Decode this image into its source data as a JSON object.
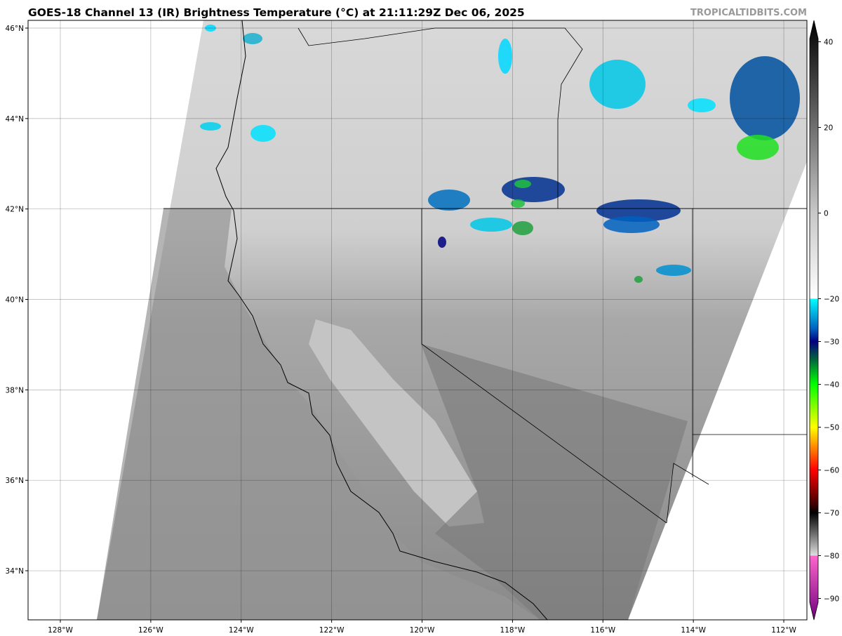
{
  "title": "GOES-18 Channel 13 (IR) Brightness Temperature (°C) at 21:11:29Z Dec 06, 2025",
  "brand": "TROPICALTIDBITS.COM",
  "map": {
    "projection": "plate carree",
    "lon_range": [
      -128.7,
      -111.5
    ],
    "lat_range": [
      32.9,
      46.2
    ],
    "grid": true,
    "lon_ticks": [
      {
        "v": -128,
        "label": "128°W"
      },
      {
        "v": -126,
        "label": "126°W"
      },
      {
        "v": -124,
        "label": "124°W"
      },
      {
        "v": -122,
        "label": "122°W"
      },
      {
        "v": -120,
        "label": "120°W"
      },
      {
        "v": -118,
        "label": "118°W"
      },
      {
        "v": -116,
        "label": "116°W"
      },
      {
        "v": -114,
        "label": "114°W"
      },
      {
        "v": -112,
        "label": "112°W"
      }
    ],
    "lat_ticks": [
      {
        "v": 46,
        "label": "46°N"
      },
      {
        "v": 44,
        "label": "44°N"
      },
      {
        "v": 42,
        "label": "42°N"
      },
      {
        "v": 40,
        "label": "40°N"
      },
      {
        "v": 38,
        "label": "38°N"
      },
      {
        "v": 36,
        "label": "36°N"
      },
      {
        "v": 34,
        "label": "34°N"
      }
    ]
  },
  "colorbar": {
    "range": [
      -95,
      45
    ],
    "extend": "both",
    "ticks": [
      {
        "v": 40,
        "label": "40"
      },
      {
        "v": 20,
        "label": "20"
      },
      {
        "v": 0,
        "label": "0"
      },
      {
        "v": -20,
        "label": "−20"
      },
      {
        "v": -30,
        "label": "−30"
      },
      {
        "v": -40,
        "label": "−40"
      },
      {
        "v": -50,
        "label": "−50"
      },
      {
        "v": -60,
        "label": "−60"
      },
      {
        "v": -70,
        "label": "−70"
      },
      {
        "v": -80,
        "label": "−80"
      },
      {
        "v": -90,
        "label": "−90"
      }
    ],
    "stops": [
      {
        "v": 45,
        "c": "#000000"
      },
      {
        "v": 0,
        "c": "#c8c8c8"
      },
      {
        "v": -20,
        "c": "#ffffff"
      },
      {
        "v": -20,
        "c": "#00ffff"
      },
      {
        "v": -27,
        "c": "#0060c0"
      },
      {
        "v": -30,
        "c": "#000080"
      },
      {
        "v": -34,
        "c": "#006040"
      },
      {
        "v": -40,
        "c": "#00ff00"
      },
      {
        "v": -50,
        "c": "#ffff00"
      },
      {
        "v": -55,
        "c": "#ff8000"
      },
      {
        "v": -60,
        "c": "#ff0000"
      },
      {
        "v": -68,
        "c": "#400000"
      },
      {
        "v": -70,
        "c": "#000000"
      },
      {
        "v": -80,
        "c": "#e0e0e0"
      },
      {
        "v": -80,
        "c": "#ff66cc"
      },
      {
        "v": -95,
        "c": "#700080"
      }
    ]
  }
}
